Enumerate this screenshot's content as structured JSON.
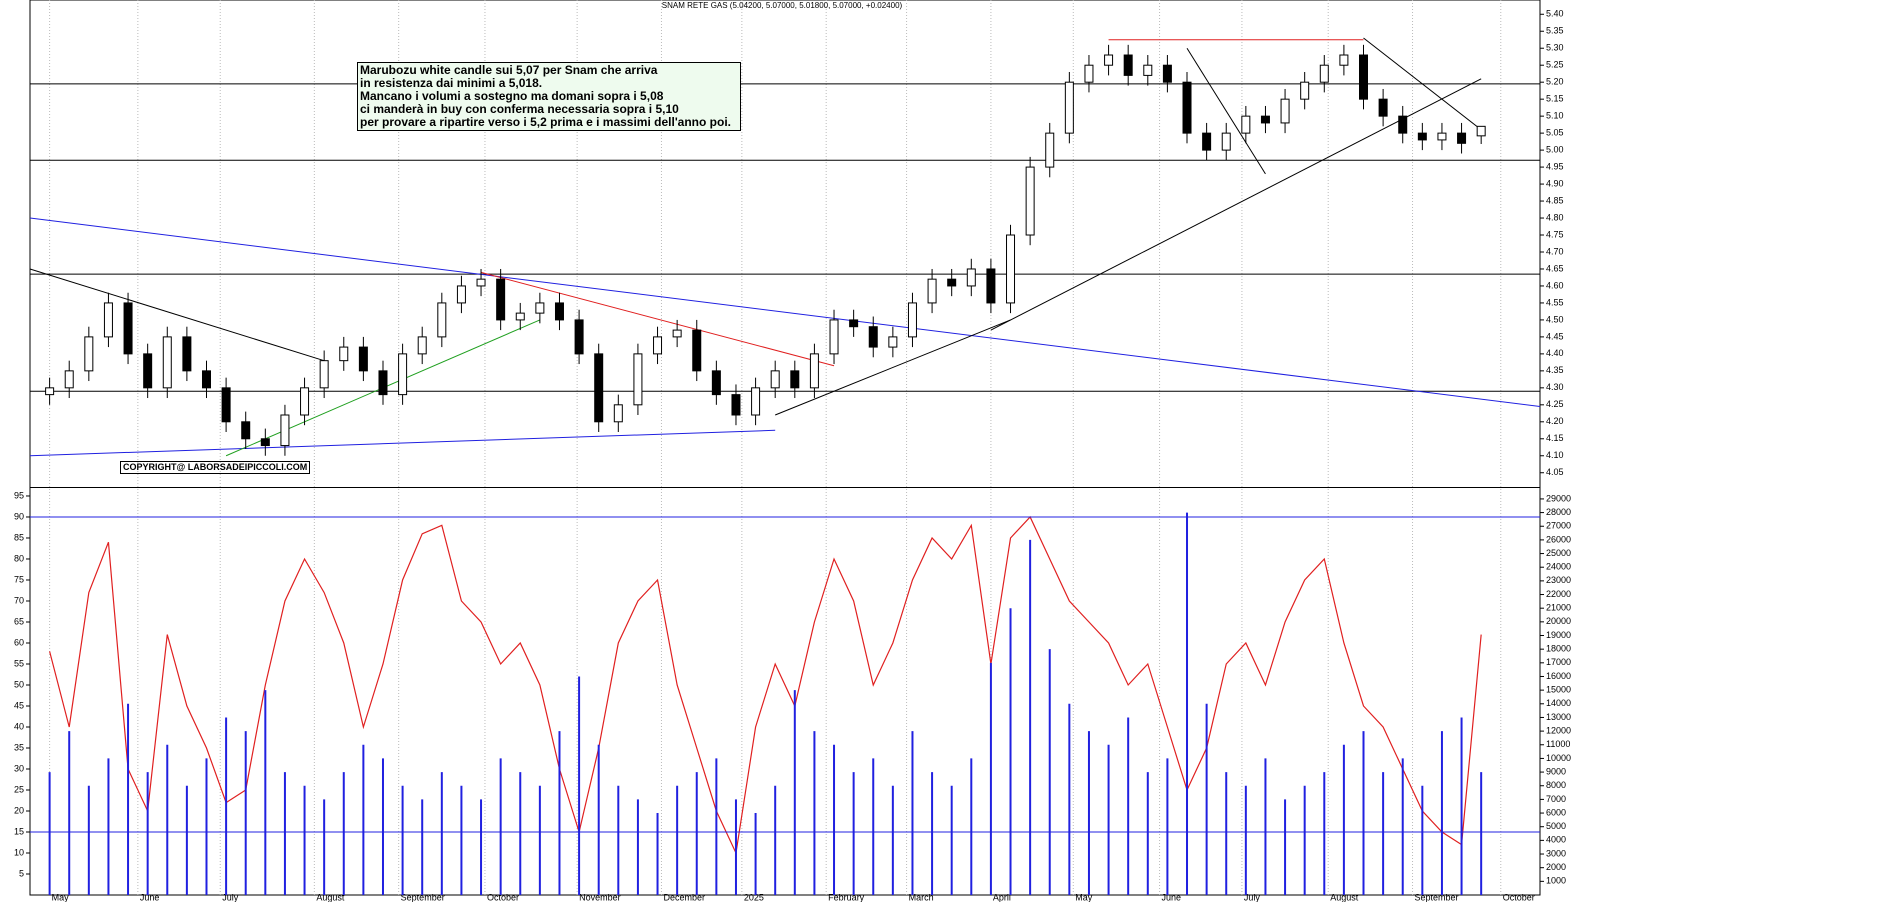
{
  "chart_data": [
    {
      "type": "candlestick",
      "title": "SNAM RETE GAS (5.04200, 5.07000, 5.01800, 5.07000, +0.02400)",
      "annotation": [
        "Marubozu white candle sui 5,07 per Snam che arriva",
        "in resistenza dai minimi a 5,018.",
        "Mancano i volumi a sostegno ma domani sopra i 5,08",
        "ci manderà in buy con conferma necessaria sopra i 5,10",
        "per provare a ripartire verso i 5,2 prima e i massimi dell'anno poi."
      ],
      "copyright": "COPYRIGHT@ LABORSADEIPICCOLI.COM",
      "open": [
        4.28,
        4.3,
        4.35,
        4.45,
        4.55,
        4.4,
        4.3,
        4.45,
        4.35,
        4.3,
        4.2,
        4.15,
        4.13,
        4.22,
        4.3,
        4.38,
        4.42,
        4.35,
        4.28,
        4.4,
        4.45,
        4.55,
        4.6,
        4.62,
        4.5,
        4.52,
        4.55,
        4.5,
        4.4,
        4.2,
        4.25,
        4.4,
        4.45,
        4.47,
        4.35,
        4.28,
        4.22,
        4.3,
        4.35,
        4.3,
        4.4,
        4.5,
        4.48,
        4.42,
        4.45,
        4.55,
        4.62,
        4.6,
        4.65,
        4.55,
        4.75,
        4.95,
        5.05,
        5.2,
        5.25,
        5.28,
        5.22,
        5.25,
        5.2,
        5.05,
        5.0,
        5.05,
        5.1,
        5.08,
        5.15,
        5.2,
        5.25,
        5.28,
        5.15,
        5.1,
        5.05,
        5.03,
        5.05,
        5.042
      ],
      "high": [
        4.33,
        4.38,
        4.48,
        4.58,
        4.58,
        4.43,
        4.48,
        4.48,
        4.38,
        4.33,
        4.23,
        4.18,
        4.25,
        4.33,
        4.41,
        4.45,
        4.45,
        4.38,
        4.43,
        4.48,
        4.58,
        4.63,
        4.65,
        4.65,
        4.55,
        4.58,
        4.58,
        4.53,
        4.43,
        4.28,
        4.43,
        4.48,
        4.5,
        4.5,
        4.38,
        4.31,
        4.33,
        4.38,
        4.38,
        4.43,
        4.53,
        4.53,
        4.51,
        4.48,
        4.58,
        4.65,
        4.65,
        4.68,
        4.68,
        4.78,
        4.98,
        5.08,
        5.23,
        5.28,
        5.31,
        5.31,
        5.28,
        5.28,
        5.23,
        5.08,
        5.08,
        5.13,
        5.13,
        5.18,
        5.23,
        5.28,
        5.31,
        5.31,
        5.18,
        5.13,
        5.08,
        5.08,
        5.08,
        5.07
      ],
      "low": [
        4.25,
        4.27,
        4.32,
        4.42,
        4.37,
        4.27,
        4.27,
        4.32,
        4.27,
        4.17,
        4.12,
        4.1,
        4.1,
        4.19,
        4.27,
        4.35,
        4.32,
        4.25,
        4.25,
        4.37,
        4.42,
        4.52,
        4.57,
        4.47,
        4.47,
        4.49,
        4.47,
        4.37,
        4.17,
        4.17,
        4.22,
        4.37,
        4.42,
        4.32,
        4.25,
        4.19,
        4.19,
        4.27,
        4.27,
        4.27,
        4.37,
        4.45,
        4.39,
        4.39,
        4.42,
        4.52,
        4.57,
        4.57,
        4.52,
        4.52,
        4.72,
        4.92,
        5.02,
        5.17,
        5.22,
        5.19,
        5.19,
        5.17,
        5.02,
        4.97,
        4.97,
        5.02,
        5.05,
        5.05,
        5.12,
        5.17,
        5.22,
        5.12,
        5.07,
        5.02,
        5.0,
        5.0,
        4.99,
        5.018
      ],
      "close": [
        4.3,
        4.35,
        4.45,
        4.55,
        4.4,
        4.3,
        4.45,
        4.35,
        4.3,
        4.2,
        4.15,
        4.13,
        4.22,
        4.3,
        4.38,
        4.42,
        4.35,
        4.28,
        4.4,
        4.45,
        4.55,
        4.6,
        4.62,
        4.5,
        4.52,
        4.55,
        4.5,
        4.4,
        4.2,
        4.25,
        4.4,
        4.45,
        4.47,
        4.35,
        4.28,
        4.22,
        4.3,
        4.35,
        4.3,
        4.4,
        4.5,
        4.48,
        4.42,
        4.45,
        4.55,
        4.62,
        4.6,
        4.65,
        4.55,
        4.75,
        4.95,
        5.05,
        5.2,
        5.25,
        5.28,
        5.22,
        5.25,
        5.2,
        5.05,
        5.0,
        5.05,
        5.1,
        5.08,
        5.15,
        5.2,
        5.25,
        5.28,
        5.15,
        5.1,
        5.05,
        5.03,
        5.05,
        5.02,
        5.07
      ],
      "xlim": [
        -1,
        76
      ],
      "xticks": [
        {
          "value": 0,
          "label": "May"
        },
        {
          "value": 4.5,
          "label": "June"
        },
        {
          "value": 8.7,
          "label": "July"
        },
        {
          "value": 13.5,
          "label": "August"
        },
        {
          "value": 17.8,
          "label": "September"
        },
        {
          "value": 22.2,
          "label": "October"
        },
        {
          "value": 26.9,
          "label": "November"
        },
        {
          "value": 31.2,
          "label": "December"
        },
        {
          "value": 35.3,
          "label": "2025"
        },
        {
          "value": 39.6,
          "label": "February"
        },
        {
          "value": 43.7,
          "label": "March"
        },
        {
          "value": 48,
          "label": "April"
        },
        {
          "value": 52.2,
          "label": "May"
        },
        {
          "value": 56.6,
          "label": "June"
        },
        {
          "value": 60.8,
          "label": "July"
        },
        {
          "value": 65.2,
          "label": "August"
        },
        {
          "value": 69.5,
          "label": "September"
        },
        {
          "value": 74,
          "label": "October"
        }
      ],
      "ylim": [
        4.008,
        5.442
      ],
      "yticks": [
        4.05,
        {
          "value": 4.1,
          "label": "4.10"
        },
        4.15,
        {
          "value": 4.2,
          "label": "4.20"
        },
        4.25,
        {
          "value": 4.3,
          "label": "4.30"
        },
        4.35,
        {
          "value": 4.4,
          "label": "4.40"
        },
        4.45,
        {
          "value": 4.5,
          "label": "4.50"
        },
        4.55,
        {
          "value": 4.6,
          "label": "4.60"
        },
        4.65,
        {
          "value": 4.7,
          "label": "4.70"
        },
        4.75,
        {
          "value": 4.8,
          "label": "4.80"
        },
        4.85,
        {
          "value": 4.9,
          "label": "4.90"
        },
        4.95,
        {
          "value": 5,
          "label": "5.00"
        },
        5.05,
        {
          "value": 5.1,
          "label": "5.10"
        },
        5.15,
        {
          "value": 5.2,
          "label": "5.20"
        },
        5.25,
        {
          "value": 5.3,
          "label": "5.30"
        },
        5.35,
        {
          "value": 5.4,
          "label": "5.40"
        }
      ],
      "levels": [
        5.195,
        4.97,
        4.635,
        4.29
      ],
      "trendlines": [
        {
          "color": "#2020e0",
          "x": [
            -1,
            76
          ],
          "y": [
            4.8,
            4.245
          ]
        },
        {
          "color": "#2020e0",
          "x": [
            -1,
            37
          ],
          "y": [
            4.1,
            4.175
          ]
        },
        {
          "color": "#e02020",
          "x": [
            22,
            40
          ],
          "y": [
            4.64,
            4.365
          ]
        },
        {
          "color": "#20a020",
          "x": [
            9,
            25
          ],
          "y": [
            4.1,
            4.5
          ]
        },
        {
          "color": "#000000",
          "x": [
            -1,
            14
          ],
          "y": [
            4.65,
            4.38
          ]
        },
        {
          "color": "#000000",
          "x": [
            37,
            49
          ],
          "y": [
            4.22,
            4.5
          ]
        },
        {
          "color": "#000000",
          "x": [
            48,
            73
          ],
          "y": [
            4.47,
            5.21
          ]
        },
        {
          "color": "#e02020",
          "x": [
            54,
            67
          ],
          "y": [
            5.325,
            5.325
          ]
        },
        {
          "color": "#000000",
          "x": [
            58,
            62
          ],
          "y": [
            5.3,
            4.93
          ]
        },
        {
          "color": "#000000",
          "x": [
            67,
            73
          ],
          "y": [
            5.33,
            5.06
          ]
        }
      ],
      "grid": true
    },
    {
      "type": "line",
      "ylim": [
        0,
        96.9
      ],
      "yticks": [
        5,
        10,
        15,
        20,
        25,
        30,
        35,
        40,
        45,
        50,
        55,
        60,
        65,
        70,
        75,
        80,
        85,
        90,
        95
      ],
      "y2lim": [
        0,
        29800
      ],
      "y2ticks": [
        1000,
        2000,
        3000,
        4000,
        5000,
        6000,
        7000,
        8000,
        9000,
        10000,
        11000,
        12000,
        13000,
        14000,
        15000,
        16000,
        17000,
        18000,
        19000,
        20000,
        21000,
        22000,
        23000,
        24000,
        25000,
        26000,
        27000,
        28000,
        29000
      ],
      "levels": [
        90,
        15
      ],
      "series": [
        {
          "type": "line",
          "color": "#e02020",
          "values": [
            58,
            40,
            72,
            84,
            30,
            20,
            62,
            45,
            35,
            22,
            25,
            50,
            70,
            80,
            72,
            60,
            40,
            55,
            75,
            86,
            88,
            70,
            65,
            55,
            60,
            50,
            30,
            15,
            35,
            60,
            70,
            75,
            50,
            35,
            20,
            10,
            40,
            55,
            45,
            65,
            80,
            70,
            50,
            60,
            75,
            85,
            80,
            88,
            55,
            85,
            90,
            80,
            70,
            65,
            60,
            50,
            55,
            40,
            25,
            35,
            55,
            60,
            50,
            65,
            75,
            80,
            60,
            45,
            40,
            30,
            20,
            15,
            12,
            62
          ]
        },
        {
          "type": "bar",
          "axis": "y2",
          "color": "#2020e0",
          "values": [
            9000,
            12000,
            8000,
            10000,
            14000,
            9000,
            11000,
            8000,
            10000,
            13000,
            12000,
            15000,
            9000,
            8000,
            7000,
            9000,
            11000,
            10000,
            8000,
            7000,
            9000,
            8000,
            7000,
            10000,
            9000,
            8000,
            12000,
            16000,
            11000,
            8000,
            7000,
            6000,
            8000,
            9000,
            10000,
            7000,
            6000,
            8000,
            15000,
            12000,
            11000,
            9000,
            10000,
            8000,
            12000,
            9000,
            8000,
            10000,
            17000,
            21000,
            26000,
            18000,
            14000,
            12000,
            11000,
            13000,
            9000,
            10000,
            28000,
            14000,
            9000,
            8000,
            10000,
            7000,
            8000,
            9000,
            11000,
            12000,
            9000,
            10000,
            8000,
            12000,
            13000,
            9000
          ]
        }
      ]
    }
  ]
}
